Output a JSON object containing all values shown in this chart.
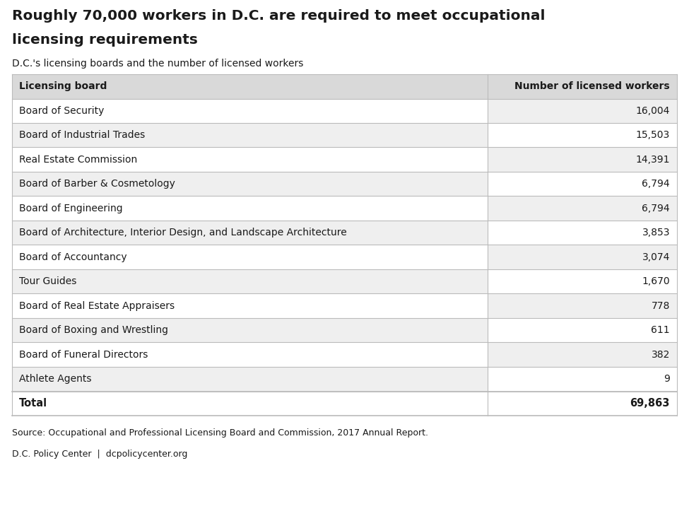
{
  "title_line1": "Roughly 70,000 workers in D.C. are required to meet occupational",
  "title_line2": "licensing requirements",
  "subtitle": "D.C.'s licensing boards and the number of licensed workers",
  "col1_header": "Licensing board",
  "col2_header": "Number of licensed workers",
  "rows": [
    [
      "Board of Security",
      "16,004"
    ],
    [
      "Board of Industrial Trades",
      "15,503"
    ],
    [
      "Real Estate Commission",
      "14,391"
    ],
    [
      "Board of Barber & Cosmetology",
      "6,794"
    ],
    [
      "Board of Engineering",
      "6,794"
    ],
    [
      "Board of Architecture, Interior Design, and Landscape Architecture",
      "3,853"
    ],
    [
      "Board of Accountancy",
      "3,074"
    ],
    [
      "Tour Guides",
      "1,670"
    ],
    [
      "Board of Real Estate Appraisers",
      "778"
    ],
    [
      "Board of Boxing and Wrestling",
      "611"
    ],
    [
      "Board of Funeral Directors",
      "382"
    ],
    [
      "Athlete Agents",
      "9"
    ]
  ],
  "total_label": "Total",
  "total_value": "69,863",
  "source_line1": "Source: Occupational and Professional Licensing Board and Commission, 2017 Annual Report.",
  "source_line2": "D.C. Policy Center  |  dcpolicycenter.org",
  "bg_color": "#ffffff",
  "header_bg": "#d9d9d9",
  "row_bg_light": "#efefef",
  "row_bg_white": "#ffffff",
  "border_color": "#bbbbbb",
  "text_color": "#1a1a1a",
  "col_split": 0.715
}
